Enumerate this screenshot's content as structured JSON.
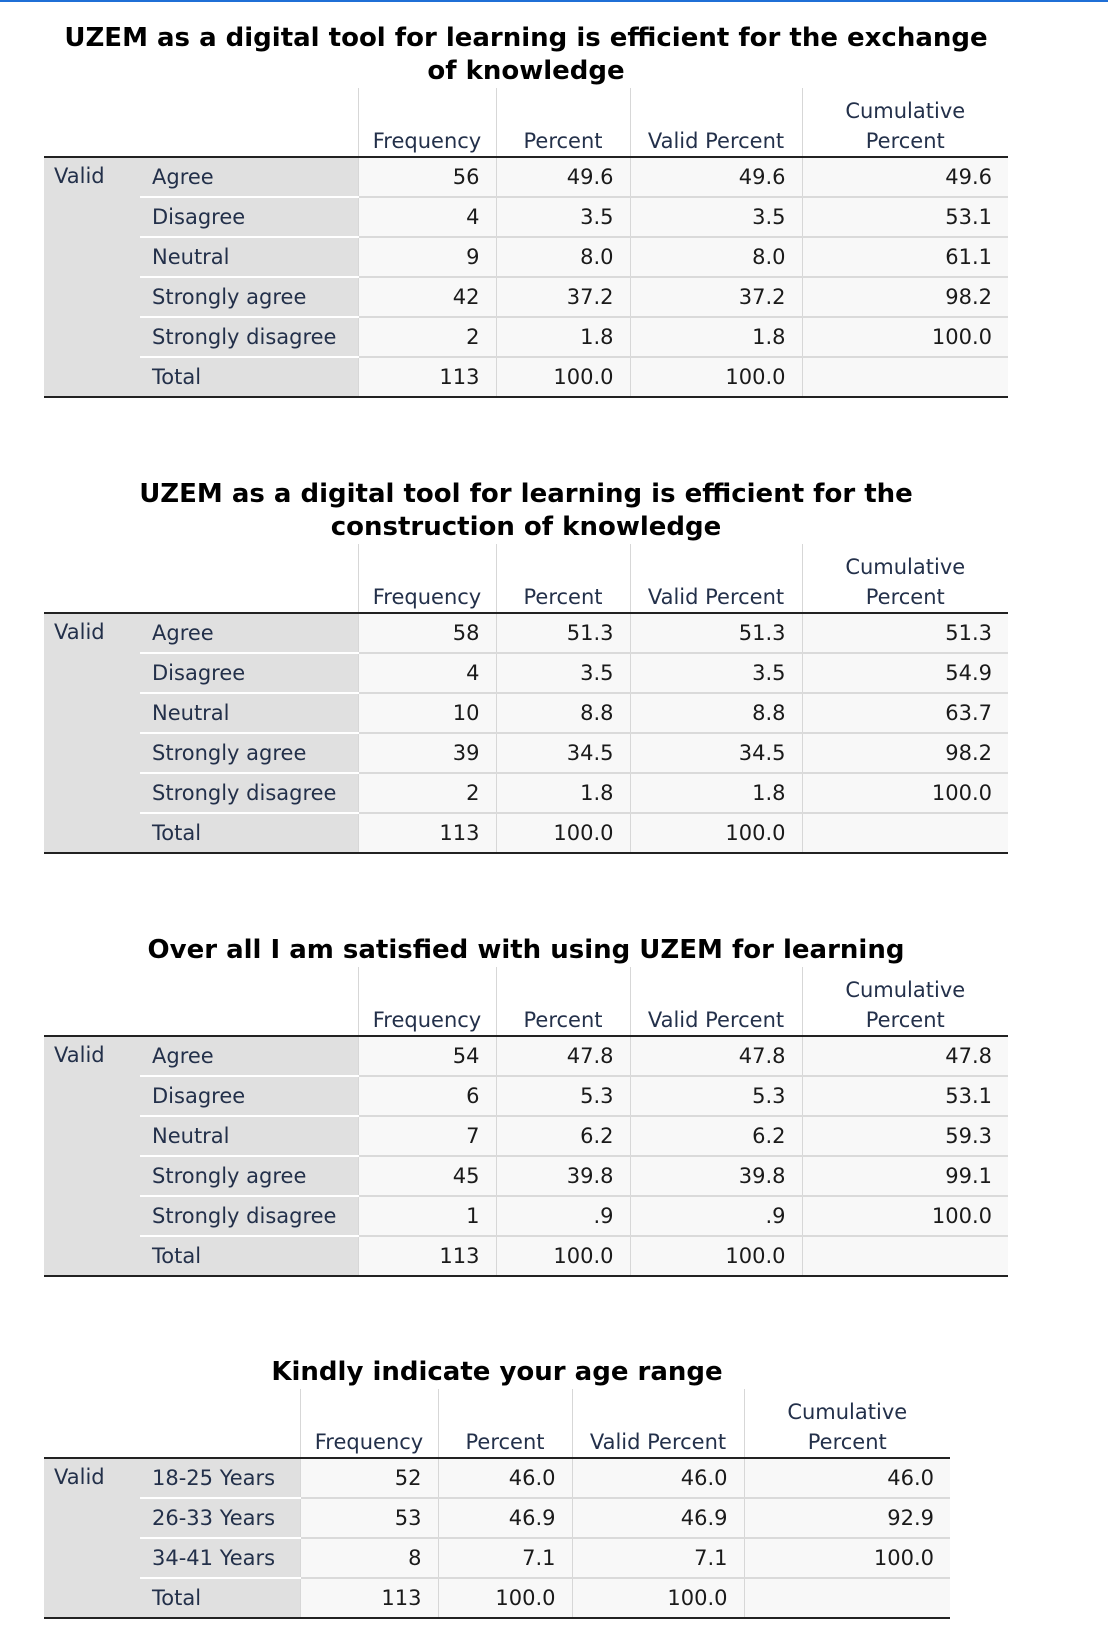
{
  "headers": {
    "frequency": "Frequency",
    "percent": "Percent",
    "valid_percent": "Valid Percent",
    "cumulative_line1": "Cumulative",
    "cumulative_line2": "Percent"
  },
  "tables": [
    {
      "title": "UZEM as a digital tool for learning is efficient for the exchange of knowledge",
      "group_label": "Valid",
      "rows": [
        {
          "label": "Agree",
          "frequency": "56",
          "percent": "49.6",
          "valid_percent": "49.6",
          "cumulative": "49.6"
        },
        {
          "label": "Disagree",
          "frequency": "4",
          "percent": "3.5",
          "valid_percent": "3.5",
          "cumulative": "53.1"
        },
        {
          "label": "Neutral",
          "frequency": "9",
          "percent": "8.0",
          "valid_percent": "8.0",
          "cumulative": "61.1"
        },
        {
          "label": "Strongly agree",
          "frequency": "42",
          "percent": "37.2",
          "valid_percent": "37.2",
          "cumulative": "98.2"
        },
        {
          "label": "Strongly disagree",
          "frequency": "2",
          "percent": "1.8",
          "valid_percent": "1.8",
          "cumulative": "100.0"
        },
        {
          "label": "Total",
          "frequency": "113",
          "percent": "100.0",
          "valid_percent": "100.0",
          "cumulative": ""
        }
      ]
    },
    {
      "title": "UZEM as a digital tool for learning is efficient for the construction of knowledge",
      "group_label": "Valid",
      "rows": [
        {
          "label": "Agree",
          "frequency": "58",
          "percent": "51.3",
          "valid_percent": "51.3",
          "cumulative": "51.3"
        },
        {
          "label": "Disagree",
          "frequency": "4",
          "percent": "3.5",
          "valid_percent": "3.5",
          "cumulative": "54.9"
        },
        {
          "label": "Neutral",
          "frequency": "10",
          "percent": "8.8",
          "valid_percent": "8.8",
          "cumulative": "63.7"
        },
        {
          "label": "Strongly agree",
          "frequency": "39",
          "percent": "34.5",
          "valid_percent": "34.5",
          "cumulative": "98.2"
        },
        {
          "label": "Strongly disagree",
          "frequency": "2",
          "percent": "1.8",
          "valid_percent": "1.8",
          "cumulative": "100.0"
        },
        {
          "label": "Total",
          "frequency": "113",
          "percent": "100.0",
          "valid_percent": "100.0",
          "cumulative": ""
        }
      ]
    },
    {
      "title": "Over all I am satisfied with using UZEM for learning",
      "group_label": "Valid",
      "rows": [
        {
          "label": "Agree",
          "frequency": "54",
          "percent": "47.8",
          "valid_percent": "47.8",
          "cumulative": "47.8"
        },
        {
          "label": "Disagree",
          "frequency": "6",
          "percent": "5.3",
          "valid_percent": "5.3",
          "cumulative": "53.1"
        },
        {
          "label": "Neutral",
          "frequency": "7",
          "percent": "6.2",
          "valid_percent": "6.2",
          "cumulative": "59.3"
        },
        {
          "label": "Strongly agree",
          "frequency": "45",
          "percent": "39.8",
          "valid_percent": "39.8",
          "cumulative": "99.1"
        },
        {
          "label": "Strongly disagree",
          "frequency": "1",
          "percent": ".9",
          "valid_percent": ".9",
          "cumulative": "100.0"
        },
        {
          "label": "Total",
          "frequency": "113",
          "percent": "100.0",
          "valid_percent": "100.0",
          "cumulative": ""
        }
      ]
    },
    {
      "title": "Kindly indicate your age range",
      "group_label": "Valid",
      "rows": [
        {
          "label": "18-25 Years",
          "frequency": "52",
          "percent": "46.0",
          "valid_percent": "46.0",
          "cumulative": "46.0"
        },
        {
          "label": "26-33 Years",
          "frequency": "53",
          "percent": "46.9",
          "valid_percent": "46.9",
          "cumulative": "92.9"
        },
        {
          "label": "34-41 Years",
          "frequency": "8",
          "percent": "7.1",
          "valid_percent": "7.1",
          "cumulative": "100.0"
        },
        {
          "label": "Total",
          "frequency": "113",
          "percent": "100.0",
          "valid_percent": "100.0",
          "cumulative": ""
        }
      ]
    }
  ]
}
